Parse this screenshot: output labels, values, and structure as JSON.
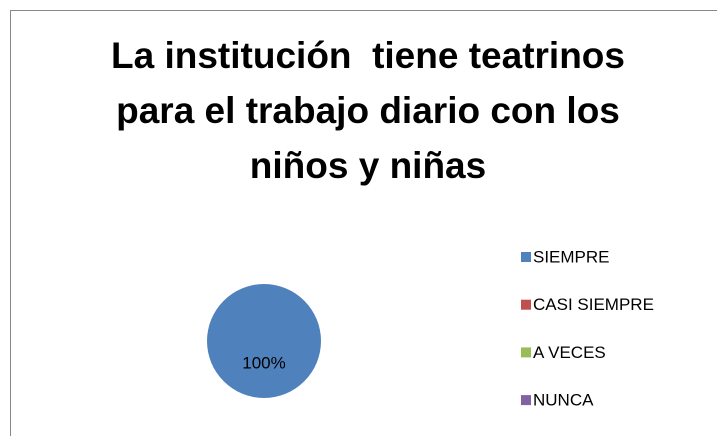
{
  "chart_data": {
    "type": "pie",
    "title": "La institución  tiene teatrinos para el trabajo diario con los niños y niñas",
    "categories": [
      "SIEMPRE",
      "CASI SIEMPRE",
      "A VECES",
      "NUNCA"
    ],
    "values": [
      100,
      0,
      0,
      0
    ],
    "value_labels": [
      "100%",
      null,
      null,
      null
    ],
    "colors": [
      "#4f81bd",
      "#c0504d",
      "#9bbb59",
      "#8064a2"
    ],
    "legend": "right"
  }
}
